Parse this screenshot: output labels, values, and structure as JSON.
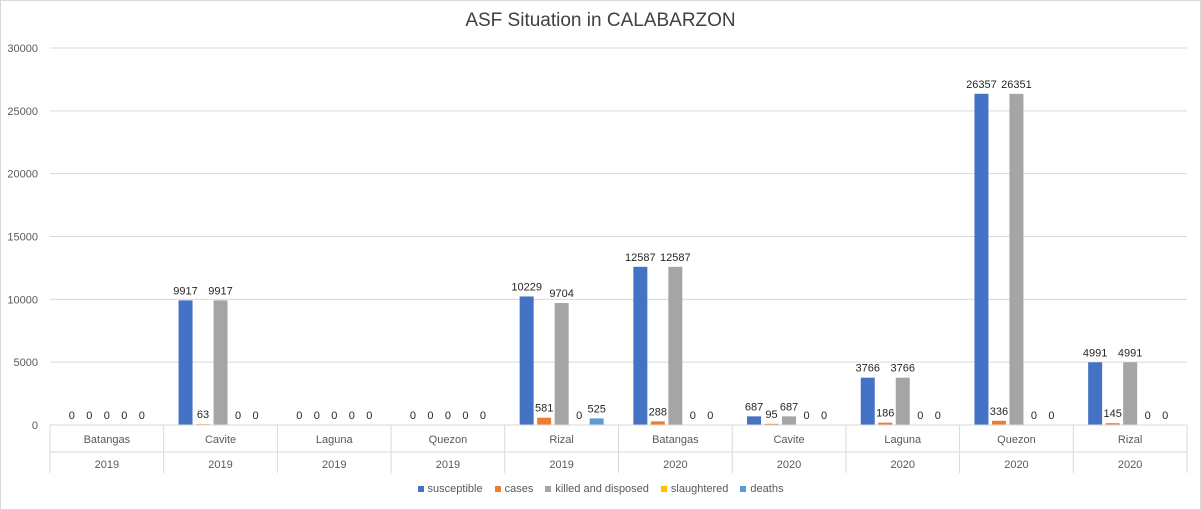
{
  "chart_data": {
    "type": "bar",
    "title": "ASF Situation in CALABARZON",
    "xlabel": "",
    "ylabel": "",
    "ylim": [
      0,
      30000
    ],
    "yticks": [
      0,
      5000,
      10000,
      15000,
      20000,
      25000,
      30000
    ],
    "grid": true,
    "legend_position": "bottom",
    "categories": [
      {
        "province": "Batangas",
        "year": "2019"
      },
      {
        "province": "Cavite",
        "year": "2019"
      },
      {
        "province": "Laguna",
        "year": "2019"
      },
      {
        "province": "Quezon",
        "year": "2019"
      },
      {
        "province": "Rizal",
        "year": "2019"
      },
      {
        "province": "Batangas",
        "year": "2020"
      },
      {
        "province": "Cavite",
        "year": "2020"
      },
      {
        "province": "Laguna",
        "year": "2020"
      },
      {
        "province": "Quezon",
        "year": "2020"
      },
      {
        "province": "Rizal",
        "year": "2020"
      }
    ],
    "series": [
      {
        "name": "susceptible",
        "color": "#4472C4",
        "values": [
          0,
          9917,
          0,
          0,
          10229,
          12587,
          687,
          3766,
          26357,
          4991
        ]
      },
      {
        "name": "cases",
        "color": "#ED7D31",
        "values": [
          0,
          63,
          0,
          0,
          581,
          288,
          95,
          186,
          336,
          145
        ]
      },
      {
        "name": "killed and disposed",
        "color": "#A5A5A5",
        "values": [
          0,
          9917,
          0,
          0,
          9704,
          12587,
          687,
          3766,
          26351,
          4991
        ]
      },
      {
        "name": "slaughtered",
        "color": "#FFC000",
        "values": [
          0,
          0,
          0,
          0,
          0,
          0,
          0,
          0,
          0,
          0
        ]
      },
      {
        "name": "deaths",
        "color": "#5B9BD5",
        "values": [
          0,
          0,
          0,
          0,
          525,
          0,
          0,
          0,
          0,
          0
        ]
      }
    ]
  }
}
